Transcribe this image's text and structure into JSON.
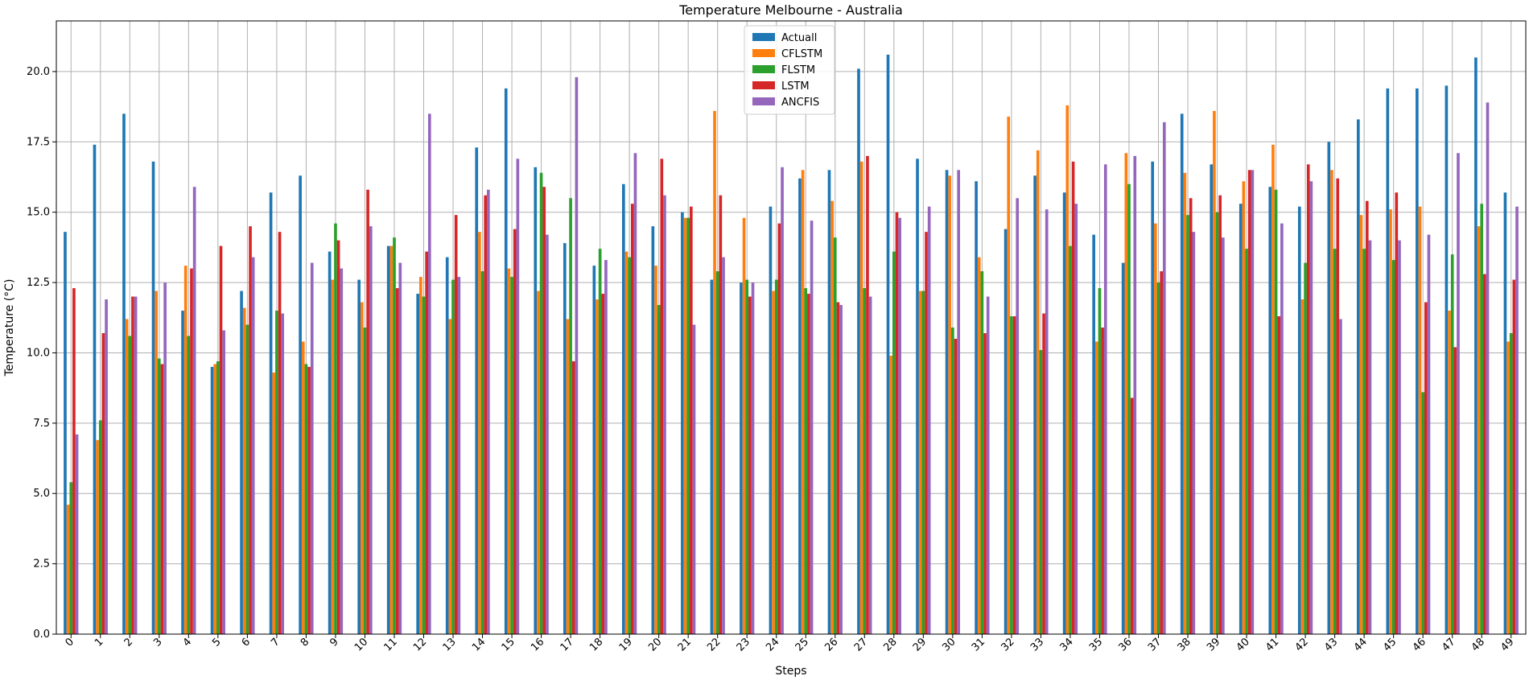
{
  "chart_data": {
    "type": "bar",
    "title": "Temperature Melbourne - Australia",
    "xlabel": "Steps",
    "ylabel": "Temperature (°C)",
    "ylim": [
      0,
      21.8
    ],
    "yticks": [
      0.0,
      2.5,
      5.0,
      7.5,
      10.0,
      12.5,
      15.0,
      17.5,
      20.0
    ],
    "ytick_labels": [
      "0.0",
      "2.5",
      "5.0",
      "7.5",
      "10.0",
      "12.5",
      "15.0",
      "17.5",
      "20.0"
    ],
    "grid": true,
    "legend_position": "top-center",
    "categories": [
      "0",
      "1",
      "2",
      "3",
      "4",
      "5",
      "6",
      "7",
      "8",
      "9",
      "10",
      "11",
      "12",
      "13",
      "14",
      "15",
      "16",
      "17",
      "18",
      "19",
      "20",
      "21",
      "22",
      "23",
      "24",
      "25",
      "26",
      "27",
      "28",
      "29",
      "30",
      "31",
      "32",
      "33",
      "34",
      "35",
      "36",
      "37",
      "38",
      "39",
      "40",
      "41",
      "42",
      "43",
      "44",
      "45",
      "46",
      "47",
      "48",
      "49"
    ],
    "series": [
      {
        "name": "Actuall",
        "color": "#1f77b4",
        "values": [
          14.3,
          17.4,
          18.5,
          16.8,
          11.5,
          9.5,
          12.2,
          15.7,
          16.3,
          13.6,
          12.6,
          13.8,
          12.1,
          13.4,
          17.3,
          19.4,
          16.6,
          13.9,
          13.1,
          16.0,
          14.5,
          15.0,
          12.6,
          12.5,
          15.2,
          16.2,
          16.5,
          20.1,
          20.6,
          16.9,
          16.5,
          16.1,
          14.4,
          16.3,
          15.7,
          14.2,
          13.2,
          16.8,
          18.5,
          16.7,
          15.3,
          15.9,
          15.2,
          17.5,
          18.3,
          19.4,
          19.4,
          19.5,
          20.5,
          15.7
        ]
      },
      {
        "name": "CFLSTM",
        "color": "#ff7f0e",
        "values": [
          4.6,
          6.9,
          11.2,
          12.2,
          13.1,
          9.6,
          11.6,
          9.3,
          10.4,
          12.6,
          11.8,
          13.8,
          12.7,
          11.2,
          14.3,
          13.0,
          12.2,
          11.2,
          11.9,
          13.6,
          13.1,
          14.8,
          18.6,
          14.8,
          12.2,
          16.5,
          15.4,
          16.8,
          9.9,
          12.2,
          16.3,
          13.4,
          18.4,
          17.2,
          18.8,
          10.4,
          17.1,
          14.6,
          16.4,
          18.6,
          16.1,
          17.4,
          11.9,
          16.5,
          14.9,
          15.1,
          15.2,
          11.5,
          14.5,
          10.4
        ]
      },
      {
        "name": "FLSTM",
        "color": "#2ca02c",
        "values": [
          5.4,
          7.6,
          10.6,
          9.8,
          10.6,
          9.7,
          11.0,
          11.5,
          9.6,
          14.6,
          10.9,
          14.1,
          12.0,
          12.6,
          12.9,
          12.7,
          16.4,
          15.5,
          13.7,
          13.4,
          11.7,
          14.8,
          12.9,
          12.6,
          12.6,
          12.3,
          14.1,
          12.3,
          13.6,
          12.2,
          10.9,
          12.9,
          11.3,
          10.1,
          13.8,
          12.3,
          16.0,
          12.5,
          14.9,
          15.0,
          13.7,
          15.8,
          13.2,
          13.7,
          13.7,
          13.3,
          8.6,
          13.5,
          15.3,
          10.7
        ]
      },
      {
        "name": "LSTM",
        "color": "#d62728",
        "values": [
          12.3,
          10.7,
          12.0,
          9.6,
          13.0,
          13.8,
          14.5,
          14.3,
          9.5,
          14.0,
          15.8,
          12.3,
          13.6,
          14.9,
          15.6,
          14.4,
          15.9,
          9.7,
          12.1,
          15.3,
          16.9,
          15.2,
          15.6,
          12.0,
          14.6,
          12.1,
          11.8,
          17.0,
          15.0,
          14.3,
          10.5,
          10.7,
          11.3,
          11.4,
          16.8,
          10.9,
          8.4,
          12.9,
          15.5,
          15.6,
          16.5,
          11.3,
          16.7,
          16.2,
          15.4,
          15.7,
          11.8,
          10.2,
          12.8,
          12.6
        ]
      },
      {
        "name": "ANCFIS",
        "color": "#9467bd",
        "values": [
          7.1,
          11.9,
          12.0,
          12.5,
          15.9,
          10.8,
          13.4,
          11.4,
          13.2,
          13.0,
          14.5,
          13.2,
          18.5,
          12.7,
          15.8,
          16.9,
          14.2,
          19.8,
          13.3,
          17.1,
          15.6,
          11.0,
          13.4,
          12.5,
          16.6,
          14.7,
          11.7,
          12.0,
          14.8,
          15.2,
          16.5,
          12.0,
          15.5,
          15.1,
          15.3,
          16.7,
          17.0,
          18.2,
          14.3,
          14.1,
          16.5,
          14.6,
          16.1,
          11.2,
          14.0,
          14.0,
          14.2,
          17.1,
          18.9,
          15.2
        ]
      }
    ]
  }
}
